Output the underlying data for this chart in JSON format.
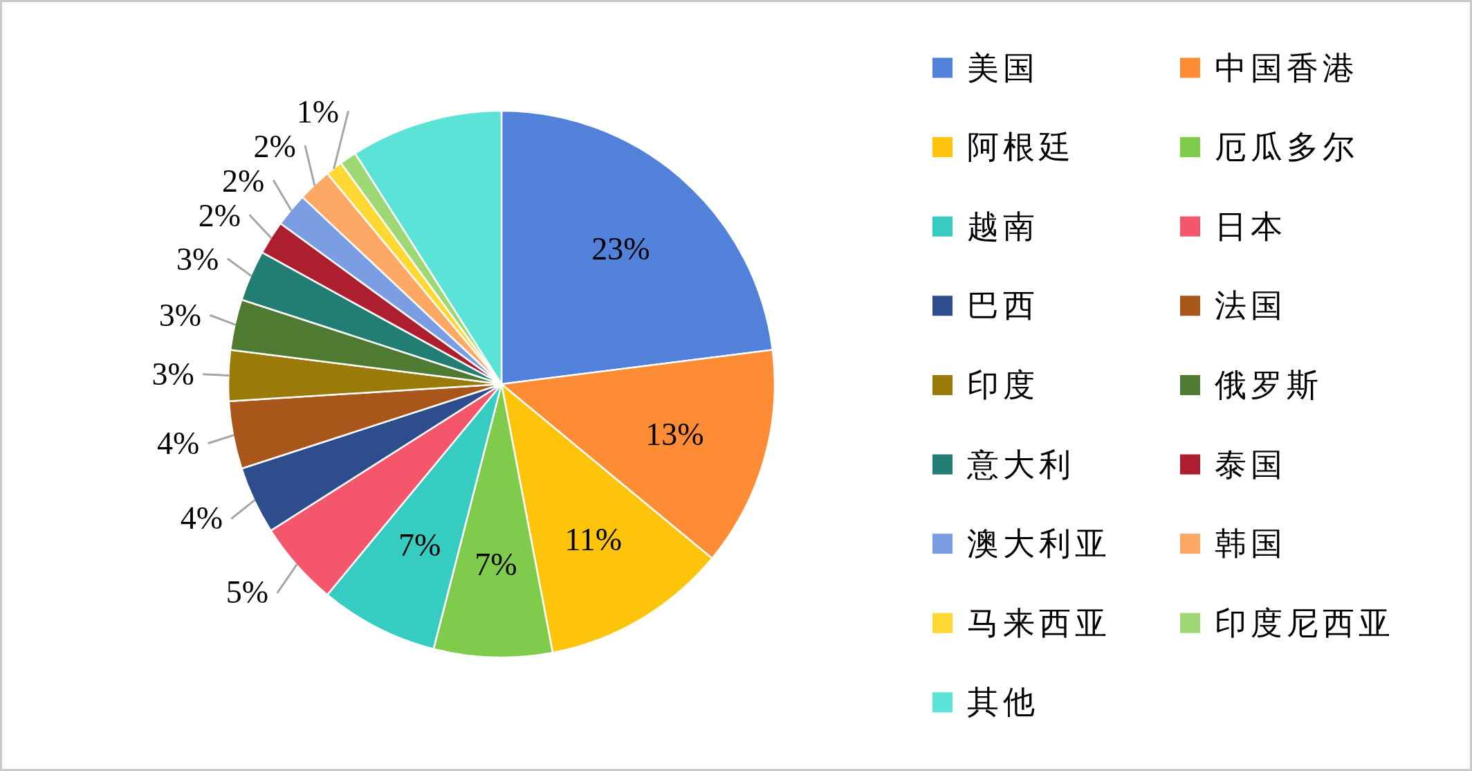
{
  "chart_data": {
    "type": "pie",
    "categories": [
      "美国",
      "中国香港",
      "阿根廷",
      "厄瓜多尔",
      "越南",
      "日本",
      "巴西",
      "法国",
      "印度",
      "俄罗斯",
      "意大利",
      "泰国",
      "澳大利亚",
      "韩国",
      "马来西亚",
      "印度尼西亚",
      "其他"
    ],
    "values": [
      23,
      13,
      11,
      7,
      7,
      5,
      4,
      4,
      3,
      3,
      3,
      2,
      2,
      2,
      1,
      1,
      9
    ],
    "colors": [
      "#5181d8",
      "#fd8c34",
      "#fec40c",
      "#7fcc4c",
      "#36ccc1",
      "#f4566b",
      "#2e4d8c",
      "#a8561a",
      "#9a7b0a",
      "#4e7b31",
      "#227d73",
      "#ad1f2f",
      "#7a9de3",
      "#fea866",
      "#ffd834",
      "#9ed874",
      "#5ce3d8"
    ],
    "value_labels": [
      "23%",
      "13%",
      "11%",
      "7%",
      "7%",
      "5%",
      "4%",
      "4%",
      "3%",
      "3%",
      "3%",
      "2%",
      "2%",
      "2%",
      "1%",
      null,
      null
    ],
    "legend": "right"
  }
}
